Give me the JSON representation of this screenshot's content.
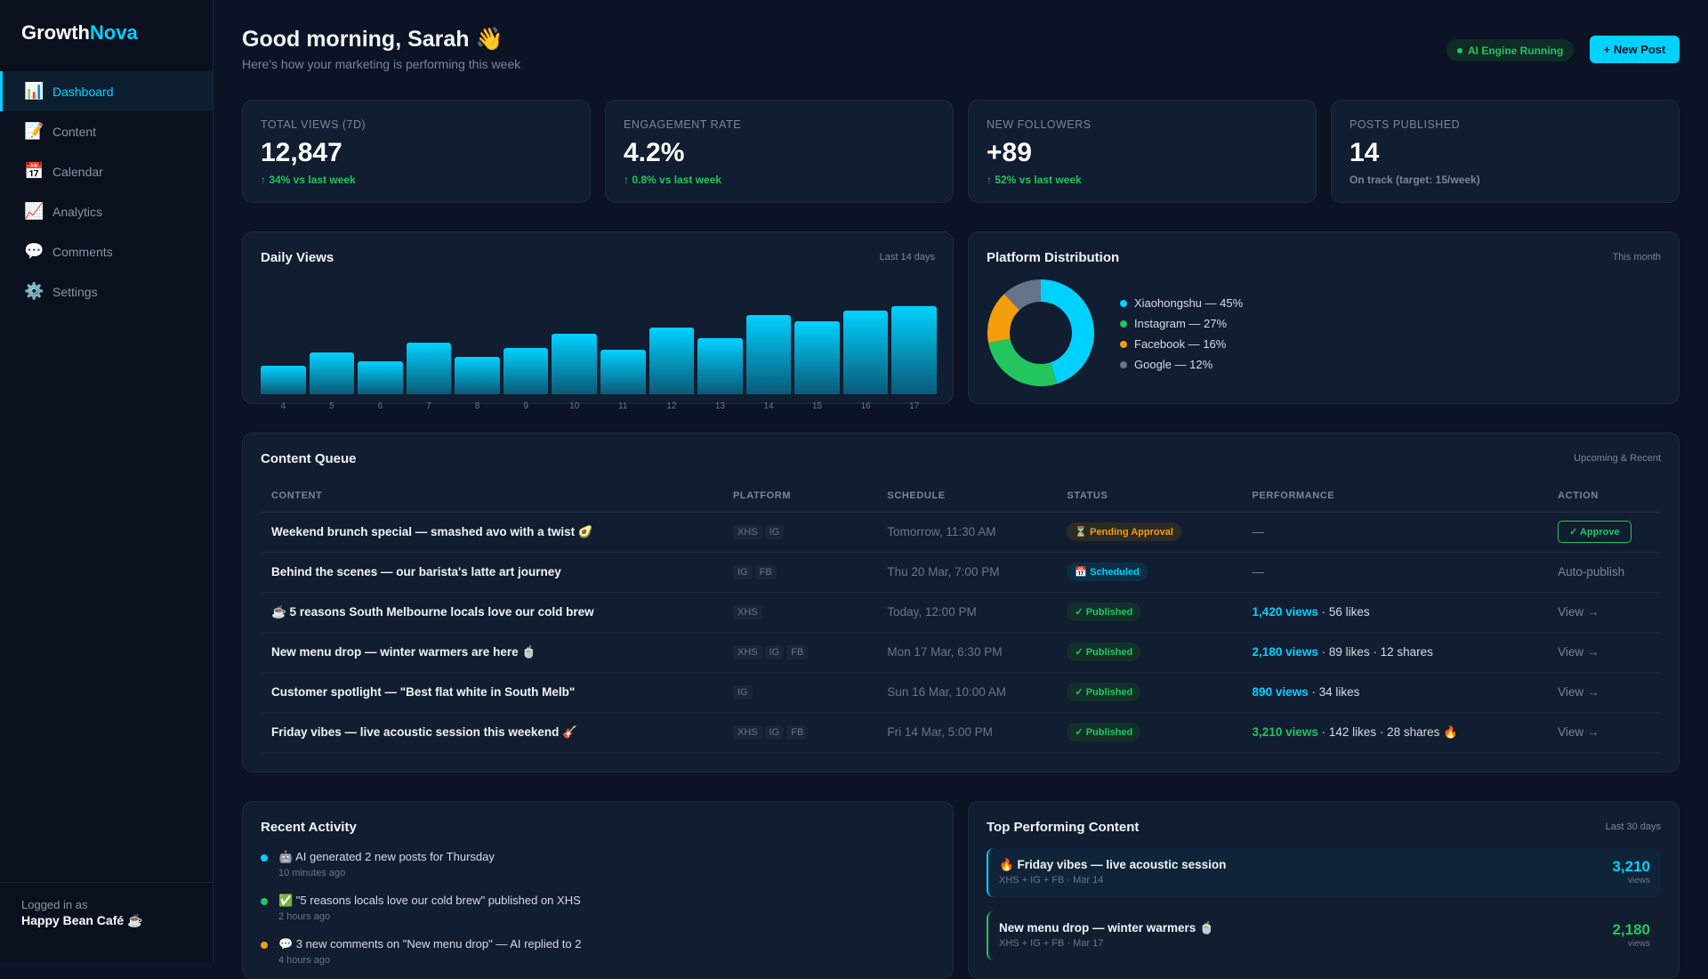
{
  "brand": {
    "part1": "Growth",
    "part2": "Nova"
  },
  "sidebar": {
    "items": [
      {
        "icon": "📊",
        "label": "Dashboard",
        "active": true
      },
      {
        "icon": "📝",
        "label": "Content"
      },
      {
        "icon": "📅",
        "label": "Calendar"
      },
      {
        "icon": "📈",
        "label": "Analytics"
      },
      {
        "icon": "💬",
        "label": "Comments"
      },
      {
        "icon": "⚙️",
        "label": "Settings"
      }
    ],
    "logged_label": "Logged in as",
    "user": "Happy Bean Café ☕"
  },
  "header": {
    "title": "Good morning, Sarah 👋",
    "subtitle": "Here's how your marketing is performing this week",
    "ai_status": "AI Engine Running",
    "new_post": "+ New Post"
  },
  "stats": [
    {
      "label": "TOTAL VIEWS (7D)",
      "value": "12,847",
      "change": "↑ 34% vs last week"
    },
    {
      "label": "ENGAGEMENT RATE",
      "value": "4.2%",
      "change": "↑ 0.8% vs last week"
    },
    {
      "label": "NEW FOLLOWERS",
      "value": "+89",
      "change": "↑ 52% vs last week"
    },
    {
      "label": "POSTS PUBLISHED",
      "value": "14",
      "change": "On track (target: 15/week)"
    }
  ],
  "daily_views": {
    "title": "Daily Views",
    "meta": "Last 14 days"
  },
  "platform": {
    "title": "Platform Distribution",
    "meta": "This month"
  },
  "chart_data": [
    {
      "type": "bar",
      "title": "Daily Views",
      "categories": [
        "4",
        "5",
        "6",
        "7",
        "8",
        "9",
        "10",
        "11",
        "12",
        "13",
        "14",
        "15",
        "16",
        "17"
      ],
      "values": [
        32,
        47,
        37,
        58,
        42,
        52,
        68,
        50,
        75,
        63,
        89,
        82,
        94,
        99
      ],
      "note_units": "relative height (% of max), no y-axis shown",
      "grid": false,
      "color": "#00d2ff"
    },
    {
      "type": "pie",
      "title": "Platform Distribution",
      "donut": true,
      "categories": [
        "Xiaohongshu",
        "Instagram",
        "Facebook",
        "Google"
      ],
      "values": [
        45,
        27,
        16,
        12
      ],
      "labels": [
        "Xiaohongshu — 45%",
        "Instagram — 27%",
        "Facebook — 16%",
        "Google — 12%"
      ],
      "colors": [
        "#00d2ff",
        "#22c55e",
        "#f59e0b",
        "#64748b"
      ],
      "legend": "right"
    }
  ],
  "queue": {
    "title": "Content Queue",
    "meta": "Upcoming & Recent",
    "columns": [
      "CONTENT",
      "PLATFORM",
      "SCHEDULE",
      "STATUS",
      "PERFORMANCE",
      "ACTION"
    ],
    "rows": [
      {
        "content": "Weekend brunch special — smashed avo with a twist 🥑",
        "platforms": [
          "XHS",
          "IG"
        ],
        "schedule": "Tomorrow, 11:30 AM",
        "status": "⏳ Pending Approval",
        "status_type": "pend",
        "views": "",
        "rest": "—",
        "action": "✓ Approve",
        "action_type": "button"
      },
      {
        "content": "Behind the scenes — our barista's latte art journey",
        "platforms": [
          "IG",
          "FB"
        ],
        "schedule": "Thu 20 Mar, 7:00 PM",
        "status": "📅 Scheduled",
        "status_type": "sch",
        "views": "",
        "rest": "—",
        "action": "Auto-publish",
        "action_type": "text"
      },
      {
        "content": "☕ 5 reasons South Melbourne locals love our cold brew",
        "platforms": [
          "XHS"
        ],
        "schedule": "Today, 12:00 PM",
        "status": "✓ Published",
        "status_type": "pub",
        "views": "1,420 views",
        "rest": " · 56 likes",
        "action": "View →",
        "action_type": "link"
      },
      {
        "content": "New menu drop — winter warmers are here 🍵",
        "platforms": [
          "XHS",
          "IG",
          "FB"
        ],
        "schedule": "Mon 17 Mar, 6:30 PM",
        "status": "✓ Published",
        "status_type": "pub",
        "views": "2,180 views",
        "rest": " · 89 likes · 12 shares",
        "action": "View →",
        "action_type": "link"
      },
      {
        "content": "Customer spotlight — \"Best flat white in South Melb\"",
        "platforms": [
          "IG"
        ],
        "schedule": "Sun 16 Mar, 10:00 AM",
        "status": "✓ Published",
        "status_type": "pub",
        "views": "890 views",
        "rest": " · 34 likes",
        "action": "View →",
        "action_type": "link"
      },
      {
        "content": "Friday vibes — live acoustic session this weekend 🎸",
        "platforms": [
          "XHS",
          "IG",
          "FB"
        ],
        "schedule": "Fri 14 Mar, 5:00 PM",
        "status": "✓ Published",
        "status_type": "pub",
        "views": "3,210 views",
        "views_green": true,
        "rest": " · 142 likes · 28 shares 🔥",
        "action": "View →",
        "action_type": "link"
      }
    ]
  },
  "activity": {
    "title": "Recent Activity",
    "items": [
      {
        "text": "🤖 AI generated 2 new posts for Thursday",
        "time": "10 minutes ago",
        "color": "#00d2ff"
      },
      {
        "text": "✅ \"5 reasons locals love our cold brew\" published on XHS",
        "time": "2 hours ago",
        "color": "#22c55e"
      },
      {
        "text": "💬 3 new comments on \"New menu drop\" — AI replied to 2",
        "time": "4 hours ago",
        "color": "#f59e0b"
      }
    ]
  },
  "top": {
    "title": "Top Performing Content",
    "meta": "Last 30 days",
    "items": [
      {
        "title": "🔥 Friday vibes — live acoustic session",
        "meta": "XHS + IG + FB · Mar 14",
        "value": "3,210",
        "unit": "views",
        "color": "#00d2ff",
        "bg": "#0f2439"
      },
      {
        "title": "New menu drop — winter warmers 🍵",
        "meta": "XHS + IG + FB · Mar 17",
        "value": "2,180",
        "unit": "views",
        "color": "#22c55e",
        "bg": "#121e30"
      }
    ]
  }
}
